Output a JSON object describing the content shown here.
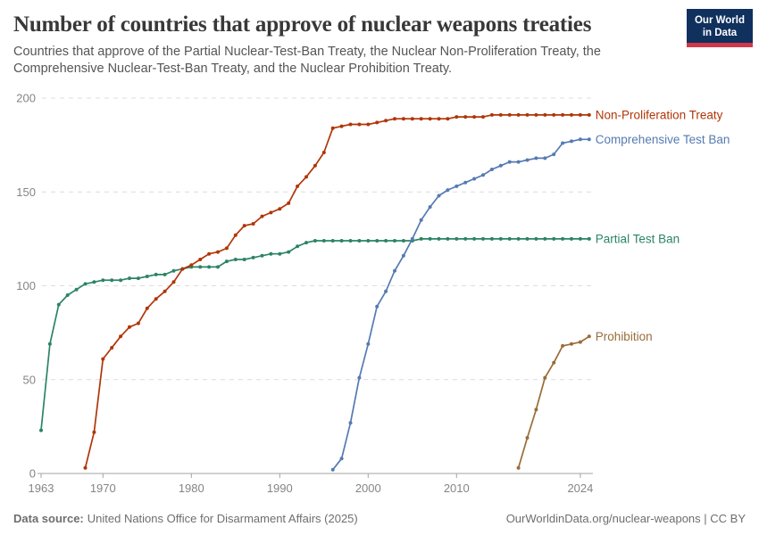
{
  "header": {
    "title": "Number of countries that approve of nuclear weapons treaties",
    "subtitle": "Countries that approve of the Partial Nuclear-Test-Ban Treaty, the Nuclear Non-Proliferation Treaty, the Comprehensive Nuclear-Test-Ban Treaty, and the Nuclear Prohibition Treaty.",
    "logo": {
      "line1": "Our World",
      "line2": "in Data",
      "bg_color": "#10305E",
      "bar_color": "#D0384A"
    }
  },
  "chart_data": {
    "type": "line",
    "title": "Number of countries that approve of nuclear weapons treaties",
    "xlim": [
      1963,
      2025
    ],
    "ylim": [
      0,
      200
    ],
    "yticks": [
      0,
      50,
      100,
      150,
      200
    ],
    "xticks": [
      1963,
      1970,
      1980,
      1990,
      2000,
      2010,
      2024
    ],
    "grid": "horizontal-dashed",
    "markers": true,
    "legend_position": "right-of-line-end",
    "axis_color": "#a3a3a3",
    "grid_color": "#dcdcdc",
    "tick_label_color": "#858585",
    "series": [
      {
        "name": "Partial Test Ban",
        "color": "#2C8465",
        "data": [
          [
            1963,
            23
          ],
          [
            1964,
            69
          ],
          [
            1965,
            90
          ],
          [
            1966,
            95
          ],
          [
            1967,
            98
          ],
          [
            1968,
            101
          ],
          [
            1969,
            102
          ],
          [
            1970,
            103
          ],
          [
            1971,
            103
          ],
          [
            1972,
            103
          ],
          [
            1973,
            104
          ],
          [
            1974,
            104
          ],
          [
            1975,
            105
          ],
          [
            1976,
            106
          ],
          [
            1977,
            106
          ],
          [
            1978,
            108
          ],
          [
            1979,
            109
          ],
          [
            1980,
            110
          ],
          [
            1981,
            110
          ],
          [
            1982,
            110
          ],
          [
            1983,
            110
          ],
          [
            1984,
            113
          ],
          [
            1985,
            114
          ],
          [
            1986,
            114
          ],
          [
            1987,
            115
          ],
          [
            1988,
            116
          ],
          [
            1989,
            117
          ],
          [
            1990,
            117
          ],
          [
            1991,
            118
          ],
          [
            1992,
            121
          ],
          [
            1993,
            123
          ],
          [
            1994,
            124
          ],
          [
            1995,
            124
          ],
          [
            1996,
            124
          ],
          [
            1997,
            124
          ],
          [
            1998,
            124
          ],
          [
            1999,
            124
          ],
          [
            2000,
            124
          ],
          [
            2001,
            124
          ],
          [
            2002,
            124
          ],
          [
            2003,
            124
          ],
          [
            2004,
            124
          ],
          [
            2005,
            124
          ],
          [
            2006,
            125
          ],
          [
            2007,
            125
          ],
          [
            2008,
            125
          ],
          [
            2009,
            125
          ],
          [
            2010,
            125
          ],
          [
            2011,
            125
          ],
          [
            2012,
            125
          ],
          [
            2013,
            125
          ],
          [
            2014,
            125
          ],
          [
            2015,
            125
          ],
          [
            2016,
            125
          ],
          [
            2017,
            125
          ],
          [
            2018,
            125
          ],
          [
            2019,
            125
          ],
          [
            2020,
            125
          ],
          [
            2021,
            125
          ],
          [
            2022,
            125
          ],
          [
            2023,
            125
          ],
          [
            2024,
            125
          ],
          [
            2025,
            125
          ]
        ]
      },
      {
        "name": "Non-Proliferation Treaty",
        "color": "#B13507",
        "data": [
          [
            1968,
            3
          ],
          [
            1969,
            22
          ],
          [
            1970,
            61
          ],
          [
            1971,
            67
          ],
          [
            1972,
            73
          ],
          [
            1973,
            78
          ],
          [
            1974,
            80
          ],
          [
            1975,
            88
          ],
          [
            1976,
            93
          ],
          [
            1977,
            97
          ],
          [
            1978,
            102
          ],
          [
            1979,
            109
          ],
          [
            1980,
            111
          ],
          [
            1981,
            114
          ],
          [
            1982,
            117
          ],
          [
            1983,
            118
          ],
          [
            1984,
            120
          ],
          [
            1985,
            127
          ],
          [
            1986,
            132
          ],
          [
            1987,
            133
          ],
          [
            1988,
            137
          ],
          [
            1989,
            139
          ],
          [
            1990,
            141
          ],
          [
            1991,
            144
          ],
          [
            1992,
            153
          ],
          [
            1993,
            158
          ],
          [
            1994,
            164
          ],
          [
            1995,
            171
          ],
          [
            1996,
            184
          ],
          [
            1997,
            185
          ],
          [
            1998,
            186
          ],
          [
            1999,
            186
          ],
          [
            2000,
            186
          ],
          [
            2001,
            187
          ],
          [
            2002,
            188
          ],
          [
            2003,
            189
          ],
          [
            2004,
            189
          ],
          [
            2005,
            189
          ],
          [
            2006,
            189
          ],
          [
            2007,
            189
          ],
          [
            2008,
            189
          ],
          [
            2009,
            189
          ],
          [
            2010,
            190
          ],
          [
            2011,
            190
          ],
          [
            2012,
            190
          ],
          [
            2013,
            190
          ],
          [
            2014,
            191
          ],
          [
            2015,
            191
          ],
          [
            2016,
            191
          ],
          [
            2017,
            191
          ],
          [
            2018,
            191
          ],
          [
            2019,
            191
          ],
          [
            2020,
            191
          ],
          [
            2021,
            191
          ],
          [
            2022,
            191
          ],
          [
            2023,
            191
          ],
          [
            2024,
            191
          ],
          [
            2025,
            191
          ]
        ]
      },
      {
        "name": "Comprehensive Test Ban",
        "color": "#567AB2",
        "data": [
          [
            1996,
            2
          ],
          [
            1997,
            8
          ],
          [
            1998,
            27
          ],
          [
            1999,
            51
          ],
          [
            2000,
            69
          ],
          [
            2001,
            89
          ],
          [
            2002,
            97
          ],
          [
            2003,
            108
          ],
          [
            2004,
            116
          ],
          [
            2005,
            125
          ],
          [
            2006,
            135
          ],
          [
            2007,
            142
          ],
          [
            2008,
            148
          ],
          [
            2009,
            151
          ],
          [
            2010,
            153
          ],
          [
            2011,
            155
          ],
          [
            2012,
            157
          ],
          [
            2013,
            159
          ],
          [
            2014,
            162
          ],
          [
            2015,
            164
          ],
          [
            2016,
            166
          ],
          [
            2017,
            166
          ],
          [
            2018,
            167
          ],
          [
            2019,
            168
          ],
          [
            2020,
            168
          ],
          [
            2021,
            170
          ],
          [
            2022,
            176
          ],
          [
            2023,
            177
          ],
          [
            2024,
            178
          ],
          [
            2025,
            178
          ]
        ]
      },
      {
        "name": "Prohibition",
        "color": "#996D39",
        "data": [
          [
            2017,
            3
          ],
          [
            2018,
            19
          ],
          [
            2019,
            34
          ],
          [
            2020,
            51
          ],
          [
            2021,
            59
          ],
          [
            2022,
            68
          ],
          [
            2023,
            69
          ],
          [
            2024,
            70
          ],
          [
            2025,
            73
          ]
        ]
      }
    ]
  },
  "footer": {
    "data_source_label": "Data source:",
    "data_source_value": "United Nations Office for Disarmament Affairs (2025)",
    "credit": "OurWorldinData.org/nuclear-weapons | CC BY"
  }
}
